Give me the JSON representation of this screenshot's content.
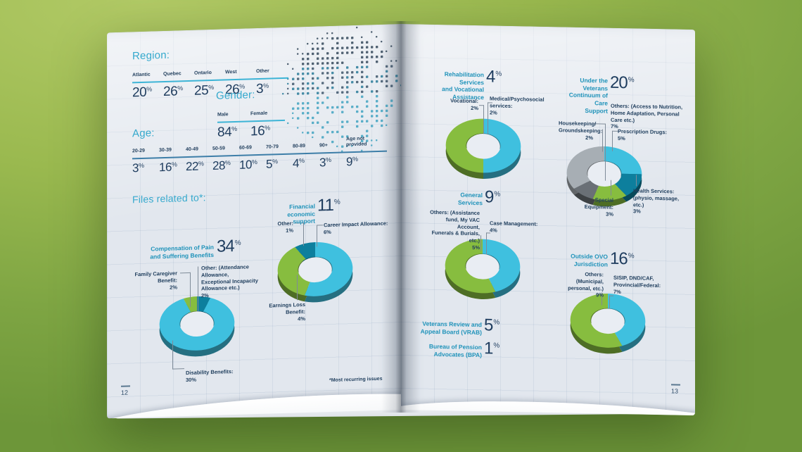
{
  "units": {
    "percent": "%"
  },
  "palette": {
    "background_green_top": "#b2ca66",
    "background_green_bottom": "#6d9639",
    "page": "#e2e7ee",
    "heading_teal": "#35a9cd",
    "chart_title_teal": "#2093ba",
    "navy": "#1e3c5e",
    "donut_blue": "#3fc0df",
    "donut_green": "#87bd3f",
    "donut_dark_teal": "#0d7f9d",
    "donut_gray": "#a7aeb4",
    "donut_dark_gray": "#6a7076"
  },
  "left_page": {
    "page_number": "12",
    "footnote": "*Most recurring issues",
    "region": {
      "title": "Region:",
      "columns": [
        {
          "label": "Atlantic",
          "value": "20"
        },
        {
          "label": "Quebec",
          "value": "26"
        },
        {
          "label": "Ontario",
          "value": "25"
        },
        {
          "label": "West",
          "value": "26"
        },
        {
          "label": "Other",
          "value": "3"
        }
      ]
    },
    "gender": {
      "title": "Gender:",
      "columns": [
        {
          "label": "Male",
          "value": "84"
        },
        {
          "label": "Female",
          "value": "16"
        }
      ]
    },
    "age": {
      "title": "Age:",
      "columns": [
        {
          "label": "20-29",
          "value": "3"
        },
        {
          "label": "30-39",
          "value": "16"
        },
        {
          "label": "40-49",
          "value": "22"
        },
        {
          "label": "50-59",
          "value": "28"
        },
        {
          "label": "60-69",
          "value": "10"
        },
        {
          "label": "70-79",
          "value": "5"
        },
        {
          "label": "80-89",
          "value": "4"
        },
        {
          "label": "90+",
          "value": "3"
        },
        {
          "label": "Age not\nprovided",
          "value": "9"
        }
      ]
    },
    "files_heading": "Files related to*:"
  },
  "right_page": {
    "page_number": "13"
  },
  "chart_data": [
    {
      "id": "compensation_pain_suffering",
      "type": "pie",
      "title": "Compensation of Pain\nand Suffering Benefits",
      "pct": "34",
      "segments": [
        {
          "label": "Other (Attendance Allowance, Exceptional Incapacity Allowance etc.)",
          "value": 2,
          "color": "#0d7f9d"
        },
        {
          "label": "Disability Benefits",
          "value": 30,
          "color": "#3fc0df"
        },
        {
          "label": "Family Caregiver Benefit",
          "value": 2,
          "color": "#87bd3f"
        }
      ],
      "callouts": {
        "family": "Family Caregiver\nBenefit:\n2%",
        "other": "Other: (Attendance\nAllowance,\nExceptional Incapacity\nAllowance etc.)\n2%",
        "disability": "Disability Benefits:\n30%"
      }
    },
    {
      "id": "financial_economic_support",
      "type": "pie",
      "title": "Financial economic\nsupport",
      "pct": "11",
      "segments": [
        {
          "label": "Career Impact Allowance",
          "value": 6,
          "color": "#3fc0df"
        },
        {
          "label": "Earnings Loss Benefit",
          "value": 4,
          "color": "#87bd3f"
        },
        {
          "label": "Other",
          "value": 1,
          "color": "#0d7f9d"
        }
      ],
      "callouts": {
        "other": "Other:\n1%",
        "career": "Career Impact Allowance:\n6%",
        "earnings": "Earnings Loss\nBenefit:\n4%"
      }
    },
    {
      "id": "rehabilitation_vocational",
      "type": "pie",
      "title": "Rehabilitation Services\nand Vocational\nAssistance",
      "pct": "4",
      "segments": [
        {
          "label": "Medical/Psychosocial services",
          "value": 2,
          "color": "#3fc0df"
        },
        {
          "label": "Vocational",
          "value": 2,
          "color": "#87bd3f"
        }
      ],
      "callouts": {
        "vocational": "Vocational:\n2%",
        "medical": "Medical/Psychosocial\nservices:\n2%"
      }
    },
    {
      "id": "continuum_of_care",
      "type": "pie",
      "title": "Under the Veterans\nContinuum of Care\nSupport",
      "pct": "20",
      "segments": [
        {
          "label": "Prescription Drugs",
          "value": 5,
          "color": "#3fc0df"
        },
        {
          "label": "Health Services (physio, massage, etc.)",
          "value": 3,
          "color": "#0d7f9d"
        },
        {
          "label": "Special Equipment",
          "value": 3,
          "color": "#87bd3f"
        },
        {
          "label": "Housekeeping/Groundskeeping",
          "value": 2,
          "color": "#6a7076"
        },
        {
          "label": "Others (Access to Nutrition, Home Adaptation, Personal Care etc.)",
          "value": 7,
          "color": "#a7aeb4"
        }
      ],
      "callouts": {
        "others": "Others: (Access to Nutrition,\nHome Adaptation, Personal\nCare etc.)\n7%",
        "housekeeping": "Housekeeping/\nGroundskeeping:\n2%",
        "prescription": "Prescription Drugs:\n5%",
        "special": "Special Equipment:\n3%",
        "health": "Health Services:\n(physio, massage,\netc.)\n3%"
      }
    },
    {
      "id": "general_services",
      "type": "pie",
      "title": "General\nServices",
      "pct": "9",
      "segments": [
        {
          "label": "Case Management",
          "value": 4,
          "color": "#3fc0df"
        },
        {
          "label": "Others (Assistance fund, My VAC Account, Funerals & Burials, etc.)",
          "value": 5,
          "color": "#87bd3f"
        }
      ],
      "callouts": {
        "others": "Others: (Assistance\nfund, My VAC Account,\nFunerals & Burials, etc.)\n5%",
        "case": "Case Management:\n4%"
      }
    },
    {
      "id": "outside_ovo_jurisdiction",
      "type": "pie",
      "title": "Outside OVO\nJurisdiction",
      "pct": "16",
      "segments": [
        {
          "label": "SISIP, DND/CAF, Provincial/Federal",
          "value": 7,
          "color": "#3fc0df"
        },
        {
          "label": "Others (Municipal, personal, etc.)",
          "value": 9,
          "color": "#87bd3f"
        }
      ],
      "callouts": {
        "others": "Others: (Municipal,\npersonal, etc.)\n9%",
        "sisip": "SISIP, DND/CAF,\nProvincial/Federal:\n7%"
      }
    },
    {
      "id": "vrab",
      "type": "stat",
      "title": "Veterans Review and\nAppeal Board (VRAB)",
      "pct": "5"
    },
    {
      "id": "bpa",
      "type": "stat",
      "title": "Bureau of Pension\nAdvocates (BPA)",
      "pct": "1"
    }
  ]
}
